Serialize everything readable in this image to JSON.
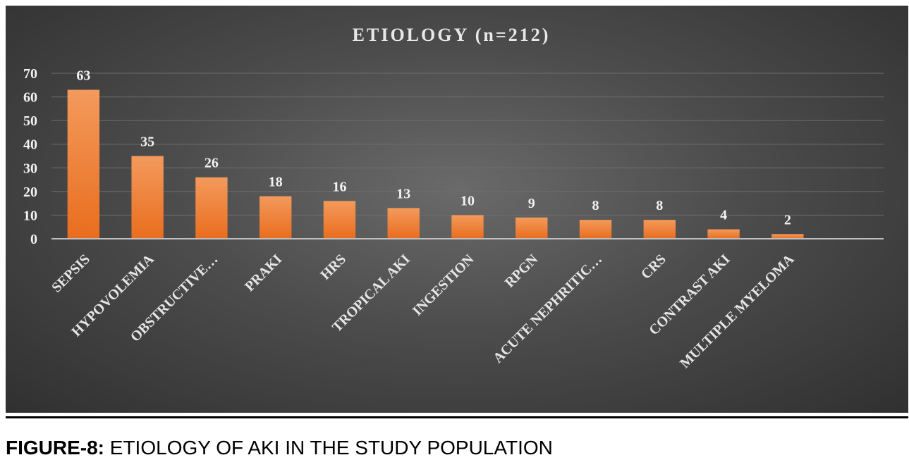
{
  "chart_data": {
    "type": "bar",
    "title": "ETIOLOGY (n=212)",
    "categories": [
      "SEPSIS",
      "HYPOVOLEMIA",
      "OBSTRUCTIVE…",
      "PRAKI",
      "HRS",
      "TROPICAL AKI",
      "INGESTION",
      "RPGN",
      "ACUTE NEPHRITIC…",
      "CRS",
      "CONTRAST AKI",
      "MULTIPLE MYELOMA"
    ],
    "values": [
      63,
      35,
      26,
      18,
      16,
      13,
      10,
      9,
      8,
      8,
      4,
      2
    ],
    "data_labels": [
      "63",
      "35",
      "26",
      "18",
      "16",
      "13",
      "10",
      "9",
      "8",
      "8",
      "4",
      "2"
    ],
    "yticks": [
      "0",
      "10",
      "20",
      "30",
      "40",
      "50",
      "60",
      "70"
    ],
    "ylim": [
      0,
      70
    ],
    "xlabel": "",
    "ylabel": "",
    "grid": true,
    "legend": "none",
    "colors": {
      "bar_top": "#f39a5c",
      "bar_bottom": "#e96d1e",
      "grid": "#6e6e6e",
      "axis": "#bfbfbf",
      "background": "#4a4a4a"
    }
  },
  "caption": {
    "label": "FIGURE-8:",
    "text": " ETIOLOGY OF AKI IN THE STUDY POPULATION"
  }
}
